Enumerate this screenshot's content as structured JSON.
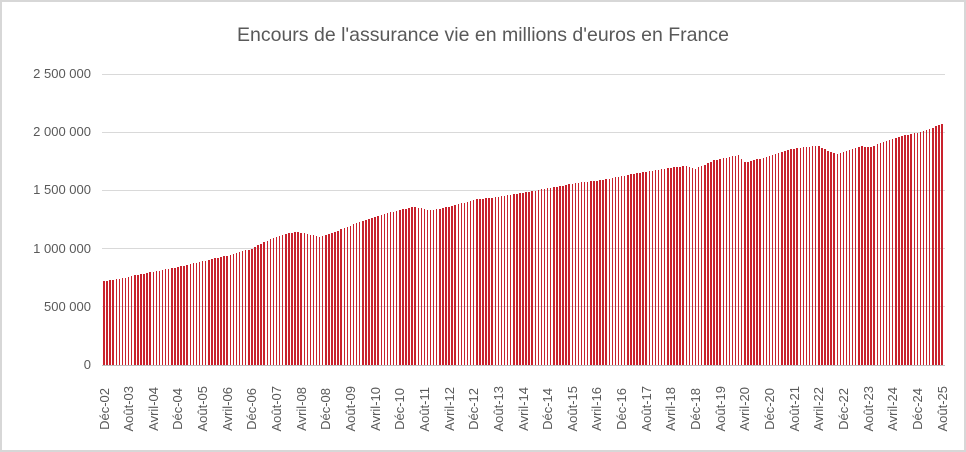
{
  "title": "Encours de l'assurance vie en millions d'euros en France",
  "colors": {
    "bar": "#C9222D",
    "gridline": "#D9D9D9",
    "axis_line": "#BFBFBF",
    "text": "#595959",
    "background": "#FFFFFF",
    "frame_border": "#D7D7D7"
  },
  "chart_data": {
    "type": "bar",
    "title": "Encours de l'assurance vie en millions d'euros en France",
    "xlabel": "",
    "ylabel": "",
    "unit": "millions d'euros",
    "frequency": "monthly",
    "n_points": 273,
    "x_start": "Déc-02",
    "x_end": "Août-25",
    "ylim": [
      0,
      2500000
    ],
    "y_tick_step": 500000,
    "grid": "horizontal",
    "legend": "none",
    "y_tick_labels_top_down": [
      "2 500 000",
      "2 000 000",
      "1 500 000",
      "1 000 000",
      "500 000",
      "0"
    ],
    "x_tick_every": 8,
    "x_tick_labels": [
      "Déc-02",
      "Août-03",
      "Avril-04",
      "Déc-04",
      "Août-05",
      "Avril-06",
      "Déc-06",
      "Août-07",
      "Avril-08",
      "Déc-08",
      "Août-09",
      "Avril-10",
      "Déc-10",
      "Août-11",
      "Avril-12",
      "Déc-12",
      "Août-13",
      "Avril-14",
      "Déc-14",
      "Août-15",
      "Avril-16",
      "Déc-16",
      "Août-17",
      "Avril-18",
      "Déc-18",
      "Août-19",
      "Avril-20",
      "Déc-20",
      "Août-21",
      "Avril-22",
      "Déc-22",
      "Août-23",
      "Avril-24",
      "Déc-24",
      "Août-25"
    ],
    "values": [
      718000,
      723000,
      727000,
      732000,
      736000,
      741000,
      745000,
      751000,
      757000,
      763000,
      769000,
      775000,
      781000,
      786000,
      791000,
      795000,
      800000,
      805000,
      810000,
      815000,
      821000,
      826000,
      831000,
      837000,
      842000,
      848000,
      854000,
      860000,
      866000,
      872000,
      878000,
      884000,
      890000,
      897000,
      903000,
      909000,
      915000,
      921000,
      927000,
      934000,
      940000,
      946000,
      952000,
      960000,
      968000,
      976000,
      984000,
      992000,
      1000000,
      1013000,
      1027000,
      1040000,
      1053000,
      1067000,
      1080000,
      1088000,
      1097000,
      1105000,
      1113000,
      1122000,
      1130000,
      1138000,
      1146000,
      1141000,
      1136000,
      1130000,
      1125000,
      1119000,
      1113000,
      1106000,
      1100000,
      1108000,
      1115000,
      1125000,
      1135000,
      1145000,
      1155000,
      1165000,
      1175000,
      1186000,
      1197000,
      1208000,
      1218000,
      1229000,
      1240000,
      1249000,
      1257000,
      1266000,
      1275000,
      1283000,
      1292000,
      1298000,
      1305000,
      1311000,
      1317000,
      1324000,
      1330000,
      1336000,
      1342000,
      1348000,
      1354000,
      1360000,
      1353000,
      1346000,
      1339000,
      1332000,
      1334000,
      1335000,
      1337000,
      1343000,
      1349000,
      1355000,
      1360000,
      1366000,
      1372000,
      1380000,
      1388000,
      1396000,
      1404000,
      1412000,
      1420000,
      1423000,
      1426000,
      1429000,
      1431000,
      1434000,
      1437000,
      1441000,
      1445000,
      1450000,
      1454000,
      1458000,
      1462000,
      1467000,
      1471000,
      1476000,
      1481000,
      1485000,
      1490000,
      1495000,
      1499000,
      1504000,
      1508000,
      1513000,
      1517000,
      1522000,
      1527000,
      1532000,
      1537000,
      1542000,
      1547000,
      1551000,
      1555000,
      1560000,
      1564000,
      1568000,
      1572000,
      1575000,
      1579000,
      1582000,
      1585000,
      1589000,
      1592000,
      1597000,
      1602000,
      1607000,
      1612000,
      1617000,
      1622000,
      1627000,
      1632000,
      1637000,
      1642000,
      1647000,
      1652000,
      1656000,
      1660000,
      1665000,
      1669000,
      1673000,
      1677000,
      1681000,
      1685000,
      1690000,
      1694000,
      1698000,
      1702000,
      1705000,
      1709000,
      1712000,
      1704000,
      1695000,
      1687000,
      1699000,
      1710000,
      1722000,
      1734000,
      1745000,
      1757000,
      1763000,
      1769000,
      1775000,
      1780000,
      1786000,
      1792000,
      1797000,
      1802000,
      1772000,
      1742000,
      1748000,
      1754000,
      1761000,
      1767000,
      1774000,
      1782000,
      1789000,
      1797000,
      1805000,
      1814000,
      1822000,
      1830000,
      1839000,
      1847000,
      1852000,
      1857000,
      1861000,
      1866000,
      1871000,
      1876000,
      1877000,
      1878000,
      1879000,
      1880000,
      1867000,
      1855000,
      1842000,
      1833000,
      1825000,
      1816000,
      1823000,
      1830000,
      1838000,
      1847000,
      1855000,
      1863000,
      1872000,
      1880000,
      1877000,
      1875000,
      1872000,
      1885000,
      1897000,
      1910000,
      1918000,
      1927000,
      1935000,
      1943000,
      1952000,
      1960000,
      1966000,
      1972000,
      1978000,
      1984000,
      1990000,
      1996000,
      2005000,
      2013000,
      2022000,
      2030000,
      2040000,
      2049000,
      2059000,
      2068000
    ]
  }
}
